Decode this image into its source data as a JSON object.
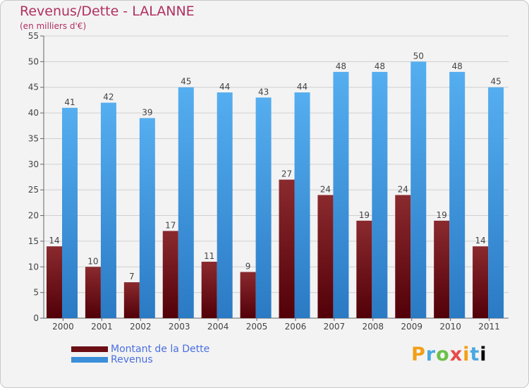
{
  "header": {
    "title": "Revenus/Dette - LALANNE",
    "subtitle": "(en milliers d'€)"
  },
  "legend": {
    "items": [
      {
        "label": "Montant de la Dette",
        "color": "#6b0f14"
      },
      {
        "label": "Revenus",
        "color": "#3a8fd8"
      }
    ]
  },
  "brand": {
    "letters": [
      "P",
      "r",
      "o",
      "x",
      "i",
      "t",
      "i"
    ]
  },
  "colors": {
    "dette_top": "#8a2a2e",
    "dette_bottom": "#520008",
    "revenus_top": "#55aef0",
    "revenus_bottom": "#2a7ac4",
    "grid": "#d0d0d0",
    "axis": "#666666",
    "label_text": "#444444"
  },
  "chart_data": {
    "type": "bar",
    "title": "Revenus/Dette - LALANNE",
    "ylabel": "(en milliers d'€)",
    "xlabel": "",
    "categories": [
      "2000",
      "2001",
      "2002",
      "2003",
      "2004",
      "2005",
      "2006",
      "2007",
      "2008",
      "2009",
      "2010",
      "2011"
    ],
    "series": [
      {
        "name": "Montant de la Dette",
        "values": [
          14,
          10,
          7,
          17,
          11,
          9,
          27,
          24,
          19,
          24,
          19,
          14
        ]
      },
      {
        "name": "Revenus",
        "values": [
          41,
          42,
          39,
          45,
          44,
          43,
          44,
          48,
          48,
          50,
          48,
          45
        ]
      }
    ],
    "ylim": [
      0,
      55
    ],
    "yticks": [
      0,
      5,
      10,
      15,
      20,
      25,
      30,
      35,
      40,
      45,
      50,
      55
    ],
    "grid": true,
    "legend_position": "bottom-left"
  }
}
